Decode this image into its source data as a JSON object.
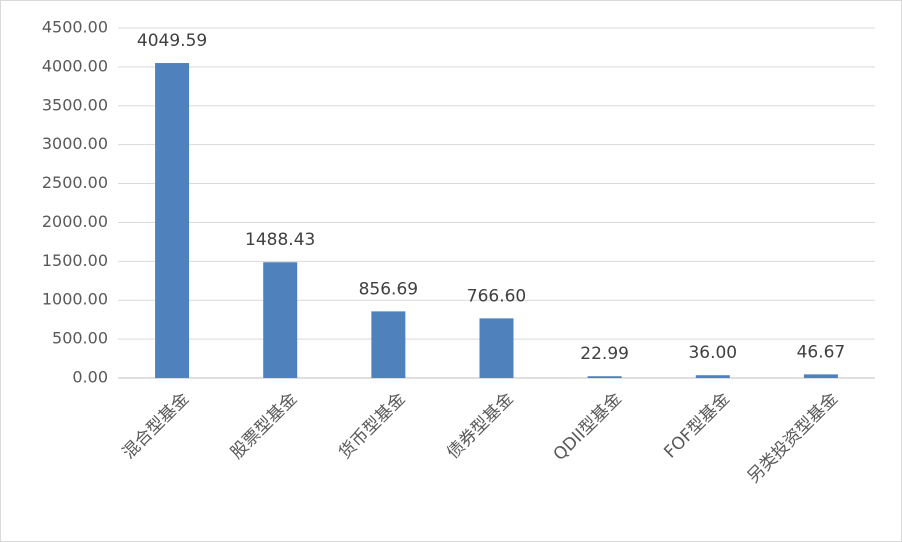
{
  "chart_data": {
    "type": "bar",
    "categories": [
      "混合型基金",
      "股票型基金",
      "货币型基金",
      "债券型基金",
      "QDII型基金",
      "FOF型基金",
      "另类投资型基金"
    ],
    "values": [
      4049.59,
      1488.43,
      856.69,
      766.6,
      22.99,
      36,
      46.67
    ],
    "value_labels": [
      "4049.59",
      "1488.43",
      "856.69",
      "766.60",
      "22.99",
      "36.00",
      "46.67"
    ],
    "color": "#4f81bd",
    "ylim": [
      0,
      4500
    ],
    "yticks": [
      {
        "value": 0,
        "label": "0.00"
      },
      {
        "value": 500,
        "label": "500.00"
      },
      {
        "value": 1000,
        "label": "1000.00"
      },
      {
        "value": 1500,
        "label": "1500.00"
      },
      {
        "value": 2000,
        "label": "2000.00"
      },
      {
        "value": 2500,
        "label": "2500.00"
      },
      {
        "value": 3000,
        "label": "3000.00"
      },
      {
        "value": 3500,
        "label": "3500.00"
      },
      {
        "value": 4000,
        "label": "4000.00"
      },
      {
        "value": 4500,
        "label": "4500.00"
      }
    ],
    "grid": true
  }
}
